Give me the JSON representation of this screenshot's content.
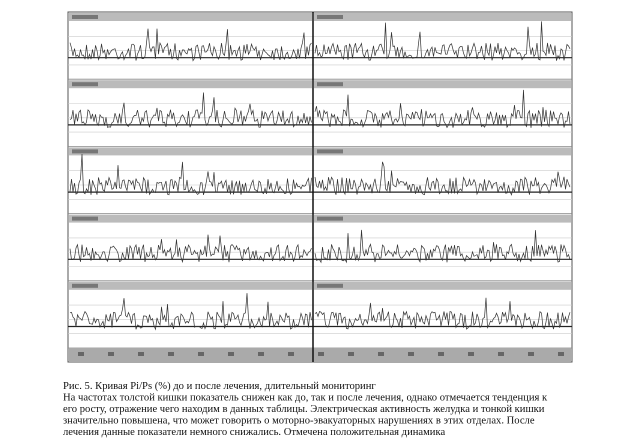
{
  "figure": {
    "caption_lines": [
      "Рис. 5. Кривая Pi/Ps (%) до и после лечения, длительный мониторинг",
      "На частотах толстой кишки показатель снижен как до, так и после лечения, однако отмечается тенденция к",
      "его росту, отражение чего находим в данных таблицы. Электрическая активность желудка и тонкой кишки",
      "значительно повышена, что может говорить о моторно-эвакуаторных нарушениях в этих отделах. После",
      "лечения данные показатели немного снижались. Отмечена положительная динамика"
    ]
  }
}
